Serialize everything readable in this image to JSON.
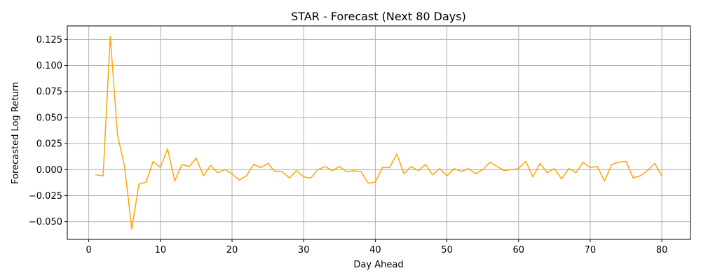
{
  "chart_data": {
    "type": "line",
    "title": "STAR - Forecast (Next 80 Days)",
    "xlabel": "Day Ahead",
    "ylabel": "Forecasted Log Return",
    "xlim": [
      -3,
      84
    ],
    "ylim": [
      -0.067,
      0.138
    ],
    "grid": true,
    "x_ticks": [
      0,
      10,
      20,
      30,
      40,
      50,
      60,
      70,
      80
    ],
    "x_tick_labels": [
      "0",
      "10",
      "20",
      "30",
      "40",
      "50",
      "60",
      "70",
      "80"
    ],
    "y_ticks": [
      -0.05,
      -0.025,
      0.0,
      0.025,
      0.05,
      0.075,
      0.1,
      0.125
    ],
    "y_tick_labels": [
      "−0.050",
      "−0.025",
      "0.000",
      "0.025",
      "0.050",
      "0.075",
      "0.100",
      "0.125"
    ],
    "series": [
      {
        "color": "#ffa500",
        "x": [
          1,
          2,
          3,
          4,
          5,
          6,
          7,
          8,
          9,
          10,
          11,
          12,
          13,
          14,
          15,
          16,
          17,
          18,
          19,
          20,
          21,
          22,
          23,
          24,
          25,
          26,
          27,
          28,
          29,
          30,
          31,
          32,
          33,
          34,
          35,
          36,
          37,
          38,
          39,
          40,
          41,
          42,
          43,
          44,
          45,
          46,
          47,
          48,
          49,
          50,
          51,
          52,
          53,
          54,
          55,
          56,
          57,
          58,
          59,
          60,
          61,
          62,
          63,
          64,
          65,
          66,
          67,
          68,
          69,
          70,
          71,
          72,
          73,
          74,
          75,
          76,
          77,
          78,
          79,
          80
        ],
        "values": [
          -0.005,
          -0.006,
          0.128,
          0.034,
          0.003,
          -0.057,
          -0.014,
          -0.012,
          0.008,
          0.002,
          0.02,
          -0.011,
          0.005,
          0.003,
          0.011,
          -0.006,
          0.004,
          -0.003,
          0.0,
          -0.004,
          -0.01,
          -0.006,
          0.005,
          0.002,
          0.006,
          -0.002,
          -0.002,
          -0.008,
          -0.001,
          -0.007,
          -0.008,
          0.0,
          0.003,
          -0.001,
          0.003,
          -0.002,
          -0.001,
          -0.002,
          -0.013,
          -0.012,
          0.002,
          0.002,
          0.015,
          -0.004,
          0.003,
          -0.001,
          0.005,
          -0.005,
          0.001,
          -0.006,
          0.001,
          -0.002,
          0.001,
          -0.004,
          0.0,
          0.007,
          0.003,
          -0.001,
          0.0,
          0.001,
          0.008,
          -0.007,
          0.006,
          -0.003,
          0.001,
          -0.009,
          0.001,
          -0.003,
          0.007,
          0.002,
          0.003,
          -0.011,
          0.005,
          0.007,
          0.008,
          -0.008,
          -0.006,
          -0.001,
          0.006,
          -0.006
        ]
      }
    ]
  }
}
